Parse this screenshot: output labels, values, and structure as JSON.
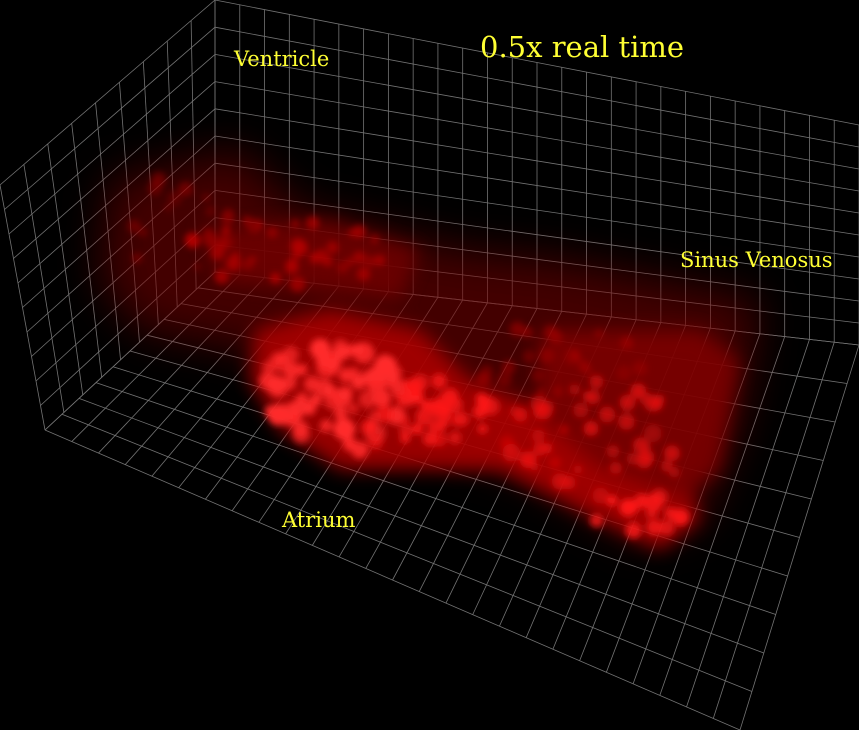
{
  "overlay": {
    "playback_speed": "0.5x real time",
    "text_color": "#ffff33"
  },
  "labels": {
    "ventricle": "Ventricle",
    "sinus_venosus": "Sinus Venosus",
    "atrium": "Atrium"
  },
  "volume": {
    "background": "#000000",
    "grid_color": "#9a9a9a",
    "signal_color": "#ff1010"
  }
}
